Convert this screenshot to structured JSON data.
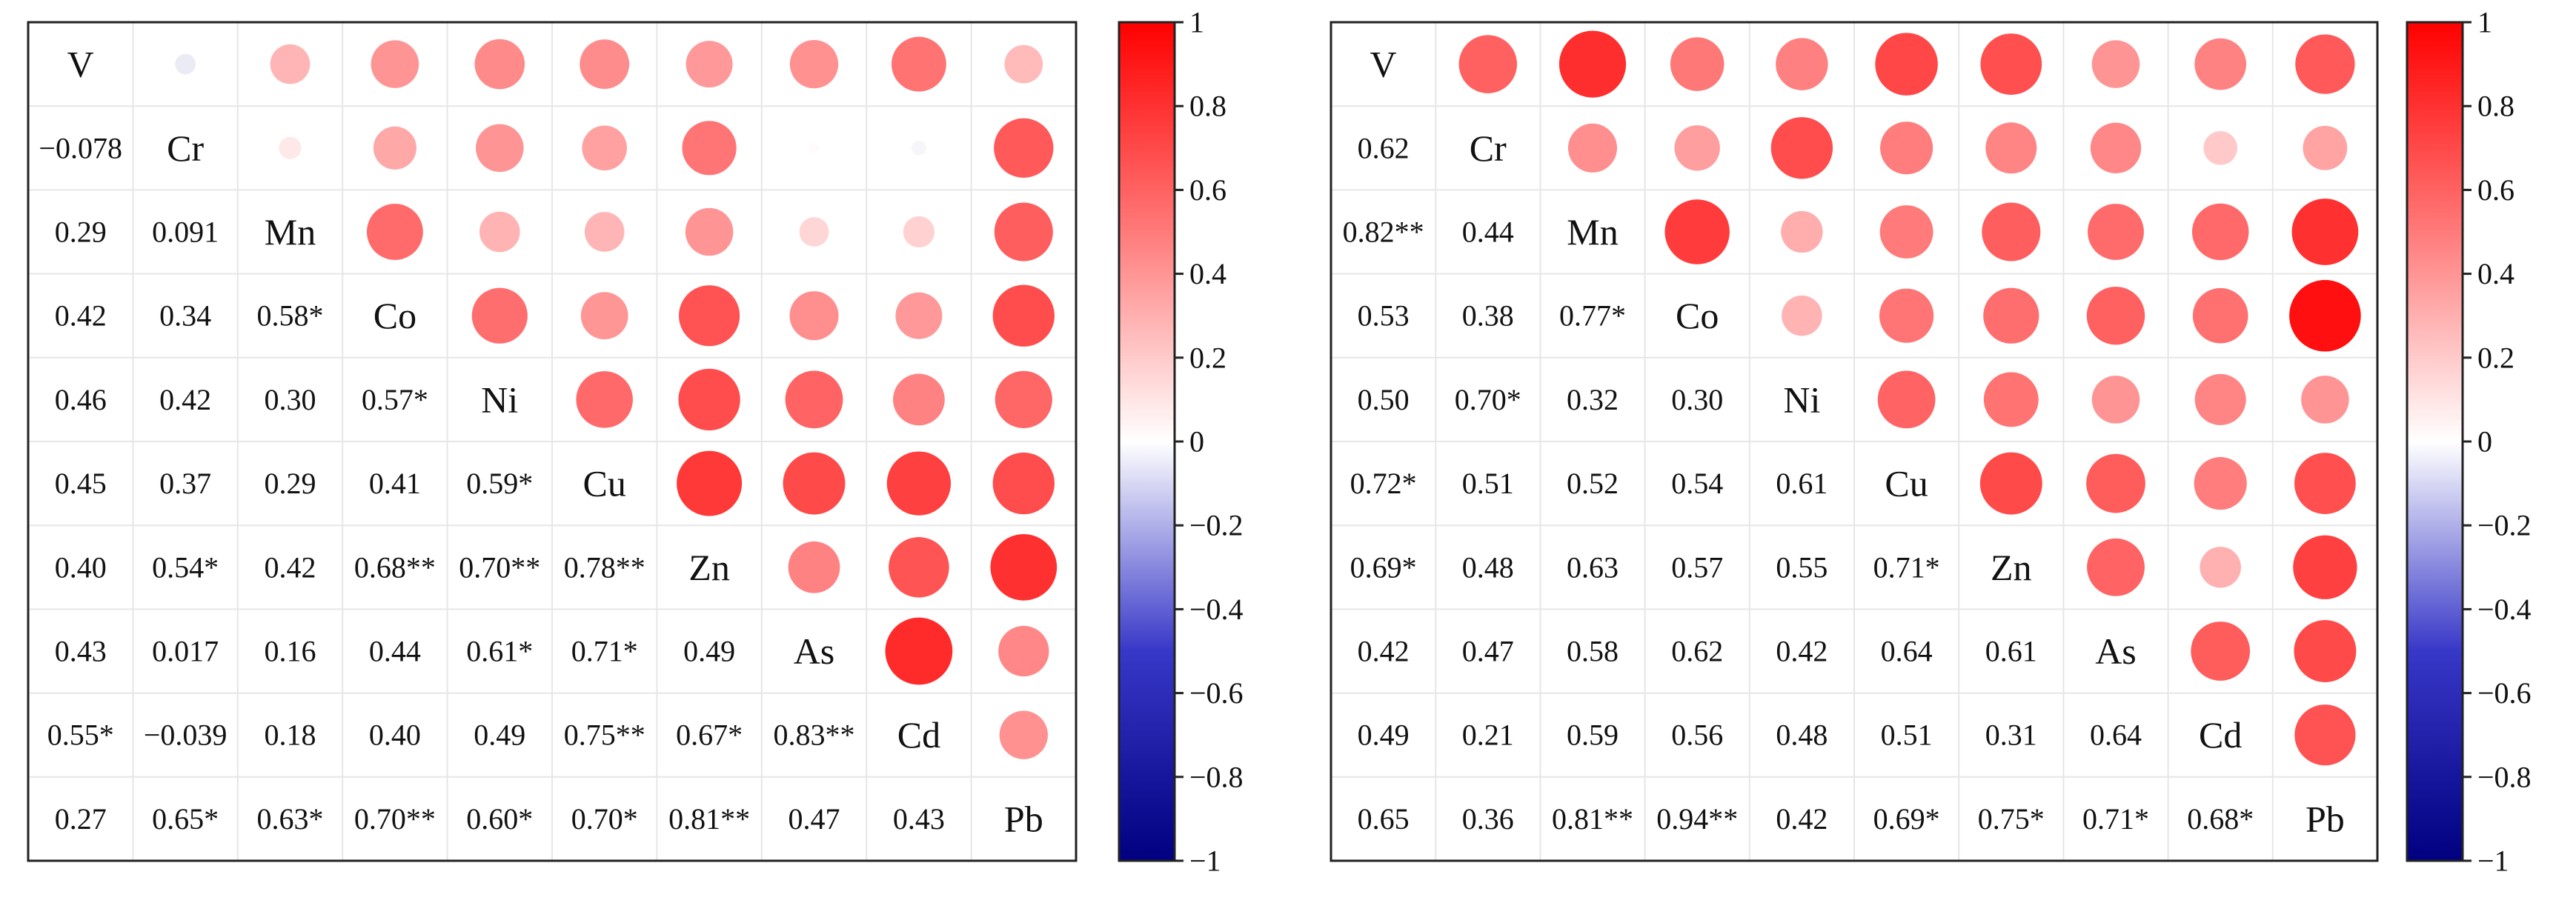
{
  "chart_data": [
    {
      "type": "heatmap",
      "variables": [
        "V",
        "Cr",
        "Mn",
        "Co",
        "Ni",
        "Cu",
        "Zn",
        "As",
        "Cd",
        "Pb"
      ],
      "correlation": [
        [
          1,
          -0.078,
          0.29,
          0.42,
          0.46,
          0.45,
          0.4,
          0.43,
          0.55,
          0.27
        ],
        [
          -0.078,
          1,
          0.091,
          0.34,
          0.42,
          0.37,
          0.54,
          0.017,
          -0.039,
          0.65
        ],
        [
          0.29,
          0.091,
          1,
          0.58,
          0.3,
          0.29,
          0.42,
          0.16,
          0.18,
          0.63
        ],
        [
          0.42,
          0.34,
          0.58,
          1,
          0.57,
          0.41,
          0.68,
          0.44,
          0.4,
          0.7
        ],
        [
          0.46,
          0.42,
          0.3,
          0.57,
          1,
          0.59,
          0.7,
          0.61,
          0.49,
          0.6
        ],
        [
          0.45,
          0.37,
          0.29,
          0.41,
          0.59,
          1,
          0.78,
          0.71,
          0.75,
          0.7
        ],
        [
          0.4,
          0.54,
          0.42,
          0.68,
          0.7,
          0.78,
          1,
          0.49,
          0.67,
          0.81
        ],
        [
          0.43,
          0.017,
          0.16,
          0.44,
          0.61,
          0.71,
          0.49,
          1,
          0.83,
          0.47
        ],
        [
          0.55,
          -0.039,
          0.18,
          0.4,
          0.49,
          0.75,
          0.67,
          0.83,
          1,
          0.43
        ],
        [
          0.27,
          0.65,
          0.63,
          0.7,
          0.6,
          0.7,
          0.81,
          0.47,
          0.43,
          1
        ]
      ],
      "lower_labels": [
        [
          "-0.078"
        ],
        [
          "0.29",
          "0.091"
        ],
        [
          "0.42",
          "0.34",
          "0.58*"
        ],
        [
          "0.46",
          "0.42",
          "0.30",
          "0.57*"
        ],
        [
          "0.45",
          "0.37",
          "0.29",
          "0.41",
          "0.59*"
        ],
        [
          "0.40",
          "0.54*",
          "0.42",
          "0.68**",
          "0.70**",
          "0.78**"
        ],
        [
          "0.43",
          "0.017",
          "0.16",
          "0.44",
          "0.61*",
          "0.71*",
          "0.49"
        ],
        [
          "0.55*",
          "-0.039",
          "0.18",
          "0.40",
          "0.49",
          "0.75**",
          "0.67*",
          "0.83**"
        ],
        [
          "0.27",
          "0.65*",
          "0.63*",
          "0.70**",
          "0.60*",
          "0.70*",
          "0.81**",
          "0.47",
          "0.43"
        ]
      ],
      "colorbar": {
        "min": -1,
        "max": 1,
        "ticks": [
          "1",
          "0.8",
          "0.6",
          "0.4",
          "0.2",
          "0",
          "-0.2",
          "-0.4",
          "-0.6",
          "-0.8",
          "-1"
        ]
      },
      "colors": {
        "negative": "#000080",
        "neutral": "#ffffff",
        "positive": "#ff0000"
      }
    },
    {
      "type": "heatmap",
      "variables": [
        "V",
        "Cr",
        "Mn",
        "Co",
        "Ni",
        "Cu",
        "Zn",
        "As",
        "Cd",
        "Pb"
      ],
      "correlation": [
        [
          1,
          0.62,
          0.82,
          0.53,
          0.5,
          0.72,
          0.69,
          0.42,
          0.49,
          0.65
        ],
        [
          0.62,
          1,
          0.44,
          0.38,
          0.7,
          0.51,
          0.48,
          0.47,
          0.21,
          0.36
        ],
        [
          0.82,
          0.44,
          1,
          0.77,
          0.32,
          0.52,
          0.63,
          0.58,
          0.59,
          0.81
        ],
        [
          0.53,
          0.38,
          0.77,
          1,
          0.3,
          0.54,
          0.57,
          0.62,
          0.56,
          0.94
        ],
        [
          0.5,
          0.7,
          0.32,
          0.3,
          1,
          0.61,
          0.55,
          0.42,
          0.48,
          0.42
        ],
        [
          0.72,
          0.51,
          0.52,
          0.54,
          0.61,
          1,
          0.71,
          0.64,
          0.51,
          0.69
        ],
        [
          0.69,
          0.48,
          0.63,
          0.57,
          0.55,
          0.71,
          1,
          0.61,
          0.31,
          0.75
        ],
        [
          0.42,
          0.47,
          0.58,
          0.62,
          0.42,
          0.64,
          0.61,
          1,
          0.64,
          0.71
        ],
        [
          0.49,
          0.21,
          0.59,
          0.56,
          0.48,
          0.51,
          0.31,
          0.64,
          1,
          0.68
        ],
        [
          0.65,
          0.36,
          0.81,
          0.94,
          0.42,
          0.69,
          0.75,
          0.71,
          0.68,
          1
        ]
      ],
      "lower_labels": [
        [
          "0.62"
        ],
        [
          "0.82**",
          "0.44"
        ],
        [
          "0.53",
          "0.38",
          "0.77*"
        ],
        [
          "0.50",
          "0.70*",
          "0.32",
          "0.30"
        ],
        [
          "0.72*",
          "0.51",
          "0.52",
          "0.54",
          "0.61"
        ],
        [
          "0.69*",
          "0.48",
          "0.63",
          "0.57",
          "0.55",
          "0.71*"
        ],
        [
          "0.42",
          "0.47",
          "0.58",
          "0.62",
          "0.42",
          "0.64",
          "0.61"
        ],
        [
          "0.49",
          "0.21",
          "0.59",
          "0.56",
          "0.48",
          "0.51",
          "0.31",
          "0.64"
        ],
        [
          "0.65",
          "0.36",
          "0.81**",
          "0.94**",
          "0.42",
          "0.69*",
          "0.75*",
          "0.71*",
          "0.68*"
        ]
      ],
      "colorbar": {
        "min": -1,
        "max": 1,
        "ticks": [
          "1",
          "0.8",
          "0.6",
          "0.4",
          "0.2",
          "0",
          "-0.2",
          "-0.4",
          "-0.6",
          "-0.8",
          "-1"
        ]
      },
      "colors": {
        "negative": "#000080",
        "neutral": "#ffffff",
        "positive": "#ff0000"
      }
    }
  ]
}
